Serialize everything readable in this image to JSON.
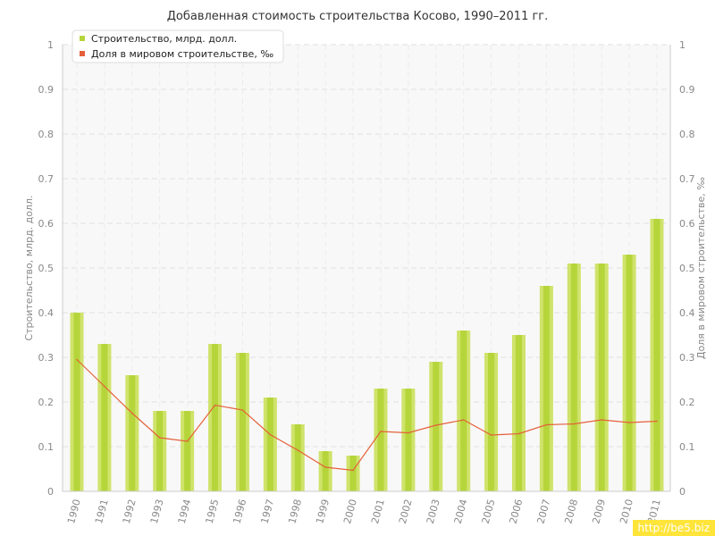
{
  "chart_data": {
    "type": "bar",
    "title": "Добавленная стоимость строительства Косово, 1990–2011 гг.",
    "categories": [
      "1990",
      "1991",
      "1992",
      "1993",
      "1994",
      "1995",
      "1996",
      "1997",
      "1998",
      "1999",
      "2000",
      "2001",
      "2002",
      "2003",
      "2004",
      "2005",
      "2006",
      "2007",
      "2008",
      "2009",
      "2010",
      "2011"
    ],
    "series": [
      {
        "name": "Строительство, млрд. долл.",
        "type": "bar",
        "axis": "left",
        "color": "#b5d53a",
        "values": [
          0.4,
          0.33,
          0.26,
          0.18,
          0.18,
          0.33,
          0.31,
          0.21,
          0.15,
          0.09,
          0.08,
          0.23,
          0.23,
          0.29,
          0.36,
          0.31,
          0.35,
          0.46,
          0.51,
          0.51,
          0.53,
          0.61
        ]
      },
      {
        "name": "Доля в мировом строительстве, ‰",
        "type": "line",
        "axis": "right",
        "color": "#e5603a",
        "values": [
          0.295,
          0.235,
          0.175,
          0.12,
          0.112,
          0.193,
          0.182,
          0.127,
          0.092,
          0.054,
          0.047,
          0.134,
          0.131,
          0.148,
          0.16,
          0.126,
          0.129,
          0.149,
          0.151,
          0.16,
          0.154,
          0.157
        ]
      }
    ],
    "ylabel_left": "Строительство, млрд. долл.",
    "ylabel_right": "Доля в мировом строительстве, ‰",
    "ylim": [
      0,
      1
    ],
    "yticks": [
      "0",
      "0.1",
      "0.2",
      "0.3",
      "0.4",
      "0.5",
      "0.6",
      "0.7",
      "0.8",
      "0.9",
      "1"
    ],
    "grid": true,
    "legend_position": "top-left"
  },
  "watermark": "http://be5.biz"
}
